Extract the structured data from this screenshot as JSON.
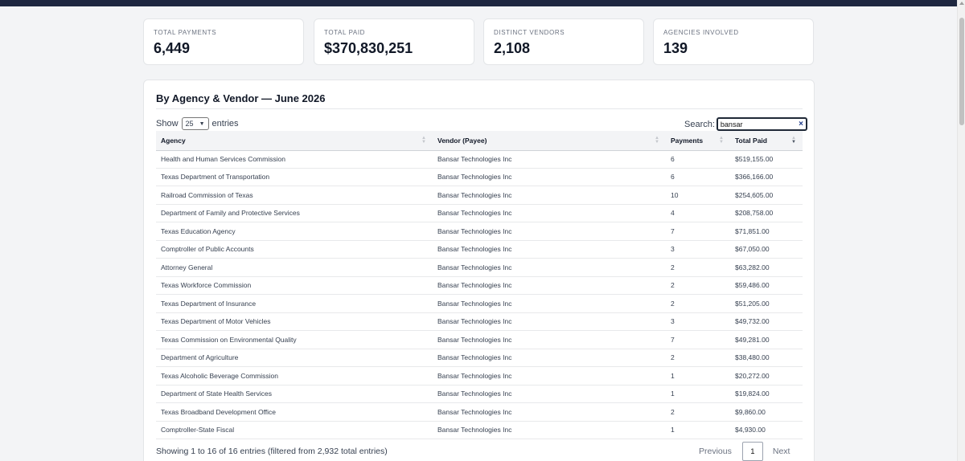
{
  "stats": [
    {
      "label": "TOTAL PAYMENTS",
      "value": "6,449"
    },
    {
      "label": "TOTAL PAID",
      "value": "$370,830,251"
    },
    {
      "label": "DISTINCT VENDORS",
      "value": "2,108"
    },
    {
      "label": "AGENCIES INVOLVED",
      "value": "139"
    }
  ],
  "card": {
    "title": "By Agency & Vendor — June 2026",
    "show_label": "Show",
    "entries_value": "25",
    "entries_label": "entries",
    "search_label": "Search:",
    "search_value": "bansar",
    "clear_icon": "×"
  },
  "table": {
    "headers": [
      "Agency",
      "Vendor (Payee)",
      "Payments",
      "Total Paid"
    ],
    "rows": [
      [
        "Health and Human Services Commission",
        "Bansar Technologies Inc",
        "6",
        "$519,155.00"
      ],
      [
        "Texas Department of Transportation",
        "Bansar Technologies Inc",
        "6",
        "$366,166.00"
      ],
      [
        "Railroad Commission of Texas",
        "Bansar Technologies Inc",
        "10",
        "$254,605.00"
      ],
      [
        "Department of Family and Protective Services",
        "Bansar Technologies Inc",
        "4",
        "$208,758.00"
      ],
      [
        "Texas Education Agency",
        "Bansar Technologies Inc",
        "7",
        "$71,851.00"
      ],
      [
        "Comptroller of Public Accounts",
        "Bansar Technologies Inc",
        "3",
        "$67,050.00"
      ],
      [
        "Attorney General",
        "Bansar Technologies Inc",
        "2",
        "$63,282.00"
      ],
      [
        "Texas Workforce Commission",
        "Bansar Technologies Inc",
        "2",
        "$59,486.00"
      ],
      [
        "Texas Department of Insurance",
        "Bansar Technologies Inc",
        "2",
        "$51,205.00"
      ],
      [
        "Texas Department of Motor Vehicles",
        "Bansar Technologies Inc",
        "3",
        "$49,732.00"
      ],
      [
        "Texas Commission on Environmental Quality",
        "Bansar Technologies Inc",
        "7",
        "$49,281.00"
      ],
      [
        "Department of Agriculture",
        "Bansar Technologies Inc",
        "2",
        "$38,480.00"
      ],
      [
        "Texas Alcoholic Beverage Commission",
        "Bansar Technologies Inc",
        "1",
        "$20,272.00"
      ],
      [
        "Department of State Health Services",
        "Bansar Technologies Inc",
        "1",
        "$19,824.00"
      ],
      [
        "Texas Broadband Development Office",
        "Bansar Technologies Inc",
        "2",
        "$9,860.00"
      ],
      [
        "Comptroller-State Fiscal",
        "Bansar Technologies Inc",
        "1",
        "$4,930.00"
      ]
    ]
  },
  "footer": {
    "info": "Showing 1 to 16 of 16 entries (filtered from 2,932 total entries)",
    "prev": "Previous",
    "page": "1",
    "next": "Next"
  }
}
